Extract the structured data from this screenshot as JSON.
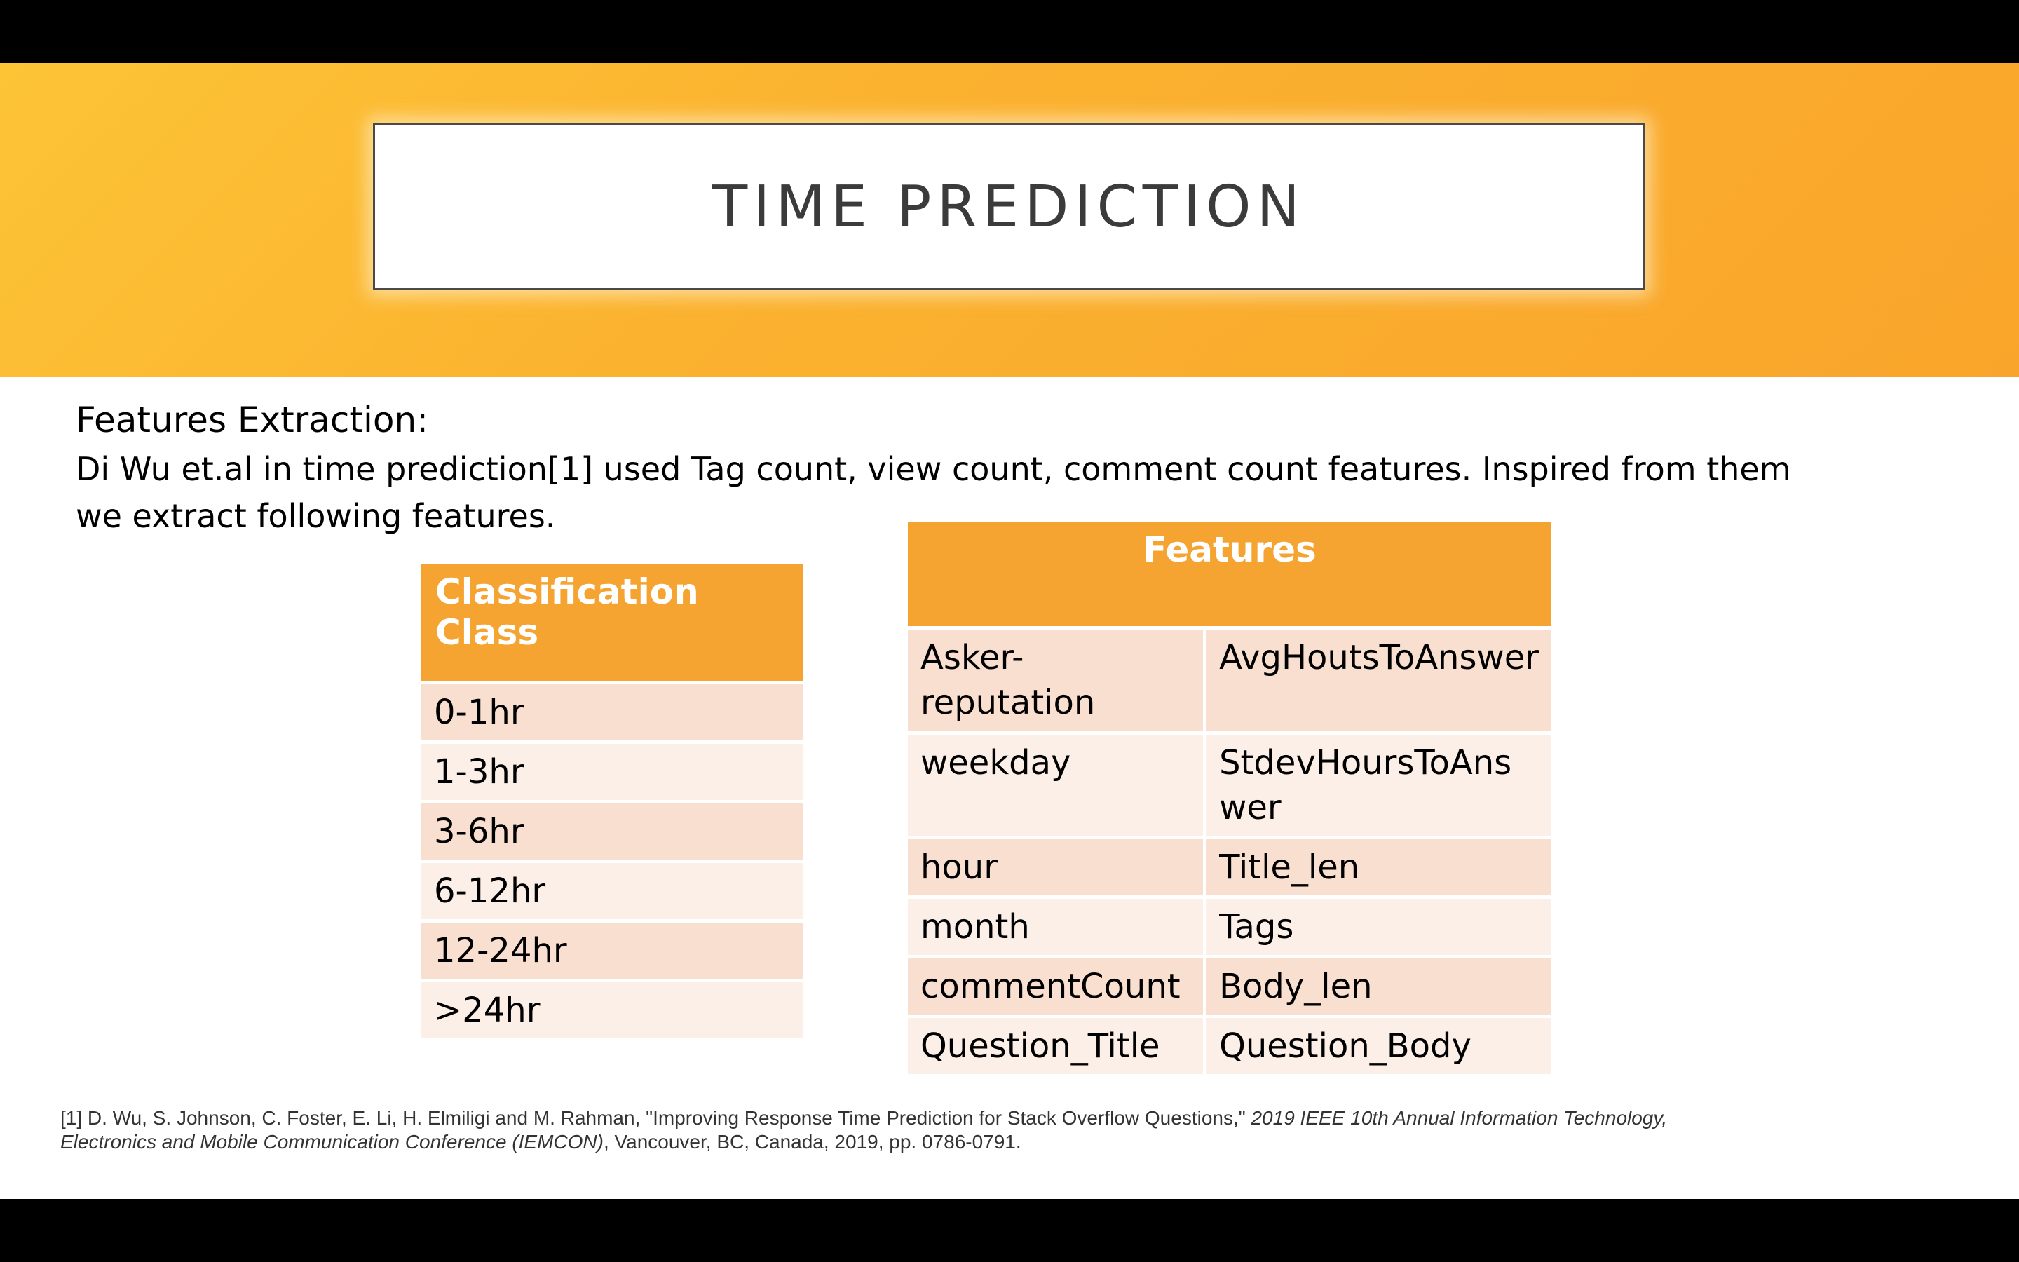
{
  "slide": {
    "title": "TIME PREDICTION",
    "heading": "Features Extraction:",
    "body": "Di Wu et.al in time prediction[1] used Tag count, view count, comment count features. Inspired from them we extract following features."
  },
  "class_table": {
    "header": "Classification Class",
    "rows": [
      "0-1hr",
      "1-3hr",
      "3-6hr",
      "6-12hr",
      "12-24hr",
      ">24hr"
    ]
  },
  "features_table": {
    "header": "Features",
    "rows": [
      [
        "Asker-reputation",
        "AvgHoutsToAnswer"
      ],
      [
        "weekday",
        "StdevHoursToAnswer"
      ],
      [
        "hour",
        "Title_len"
      ],
      [
        "month",
        "Tags"
      ],
      [
        "commentCount",
        "Body_len"
      ],
      [
        "Question_Title",
        "Question_Body"
      ]
    ]
  },
  "footnote": {
    "prefix": "[1] D. Wu, S. Johnson, C. Foster, E. Li, H. Elmiligi and M. Rahman, \"Improving Response Time Prediction for Stack Overflow Questions,\" ",
    "venue": "2019 IEEE 10th Annual Information Technology, Electronics and Mobile Communication Conference (IEMCON)",
    "suffix": ", Vancouver, BC, Canada, 2019, pp. 0786-0791."
  },
  "colors": {
    "banner": "#f9a52b",
    "header_fill": "#f5a331",
    "row_dark": "#f9dfcf",
    "row_light": "#fcefe8"
  }
}
